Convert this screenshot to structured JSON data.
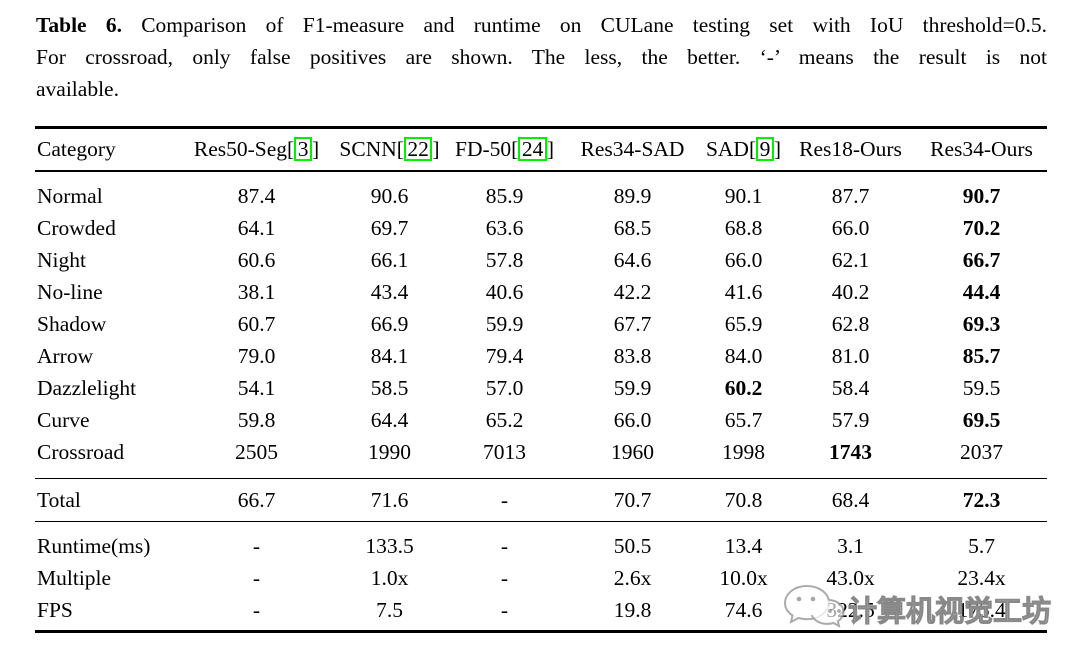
{
  "colors": {
    "background": "#ffffff",
    "text": "#000000",
    "citation_box": "#00f000",
    "watermark_gray": "#afafaf"
  },
  "caption": {
    "label": "Table 6.",
    "line1": "Comparison of F1-measure and runtime on CULane testing set with IoU threshold=0.5.",
    "line2": "For crossroad, only false positives are shown. The less, the better. ‘-’ means the result is not",
    "line3": "available."
  },
  "citation_bracket_open": "[",
  "citation_bracket_close": "]",
  "table": {
    "header": [
      {
        "label": "Category",
        "cite": null
      },
      {
        "label": "Res50-Seg",
        "cite": "3"
      },
      {
        "label": "SCNN",
        "cite": "22"
      },
      {
        "label": "FD-50",
        "cite": "24"
      },
      {
        "label": "Res34-SAD",
        "cite": null
      },
      {
        "label": "SAD",
        "cite": "9"
      },
      {
        "label": "Res18-Ours",
        "cite": null
      },
      {
        "label": "Res34-Ours",
        "cite": null
      }
    ],
    "main_rows": [
      {
        "category": "Normal",
        "values": [
          "87.4",
          "90.6",
          "85.9",
          "89.9",
          "90.1",
          "87.7",
          "90.7"
        ],
        "bold_indices": [
          6
        ]
      },
      {
        "category": "Crowded",
        "values": [
          "64.1",
          "69.7",
          "63.6",
          "68.5",
          "68.8",
          "66.0",
          "70.2"
        ],
        "bold_indices": [
          6
        ]
      },
      {
        "category": "Night",
        "values": [
          "60.6",
          "66.1",
          "57.8",
          "64.6",
          "66.0",
          "62.1",
          "66.7"
        ],
        "bold_indices": [
          6
        ]
      },
      {
        "category": "No-line",
        "values": [
          "38.1",
          "43.4",
          "40.6",
          "42.2",
          "41.6",
          "40.2",
          "44.4"
        ],
        "bold_indices": [
          6
        ]
      },
      {
        "category": "Shadow",
        "values": [
          "60.7",
          "66.9",
          "59.9",
          "67.7",
          "65.9",
          "62.8",
          "69.3"
        ],
        "bold_indices": [
          6
        ]
      },
      {
        "category": "Arrow",
        "values": [
          "79.0",
          "84.1",
          "79.4",
          "83.8",
          "84.0",
          "81.0",
          "85.7"
        ],
        "bold_indices": [
          6
        ]
      },
      {
        "category": "Dazzlelight",
        "values": [
          "54.1",
          "58.5",
          "57.0",
          "59.9",
          "60.2",
          "58.4",
          "59.5"
        ],
        "bold_indices": [
          4
        ]
      },
      {
        "category": "Curve",
        "values": [
          "59.8",
          "64.4",
          "65.2",
          "66.0",
          "65.7",
          "57.9",
          "69.5"
        ],
        "bold_indices": [
          6
        ]
      },
      {
        "category": "Crossroad",
        "values": [
          "2505",
          "1990",
          "7013",
          "1960",
          "1998",
          "1743",
          "2037"
        ],
        "bold_indices": [
          5
        ]
      }
    ],
    "total_rows": [
      {
        "category": "Total",
        "values": [
          "66.7",
          "71.6",
          "-",
          "70.7",
          "70.8",
          "68.4",
          "72.3"
        ],
        "bold_indices": [
          6
        ]
      }
    ],
    "runtime_rows": [
      {
        "category": "Runtime(ms)",
        "values": [
          "-",
          "133.5",
          "-",
          "50.5",
          "13.4",
          "3.1",
          "5.7"
        ],
        "bold_indices": []
      },
      {
        "category": "Multiple",
        "values": [
          "-",
          "1.0x",
          "-",
          "2.6x",
          "10.0x",
          "43.0x",
          "23.4x"
        ],
        "bold_indices": []
      },
      {
        "category": "FPS",
        "values": [
          "-",
          "7.5",
          "-",
          "19.8",
          "74.6",
          "322.5",
          "175.4"
        ],
        "bold_indices": []
      }
    ]
  },
  "watermark": {
    "text": "计算机视觉工坊",
    "icon": "wechat-chat-bubbles-icon"
  }
}
